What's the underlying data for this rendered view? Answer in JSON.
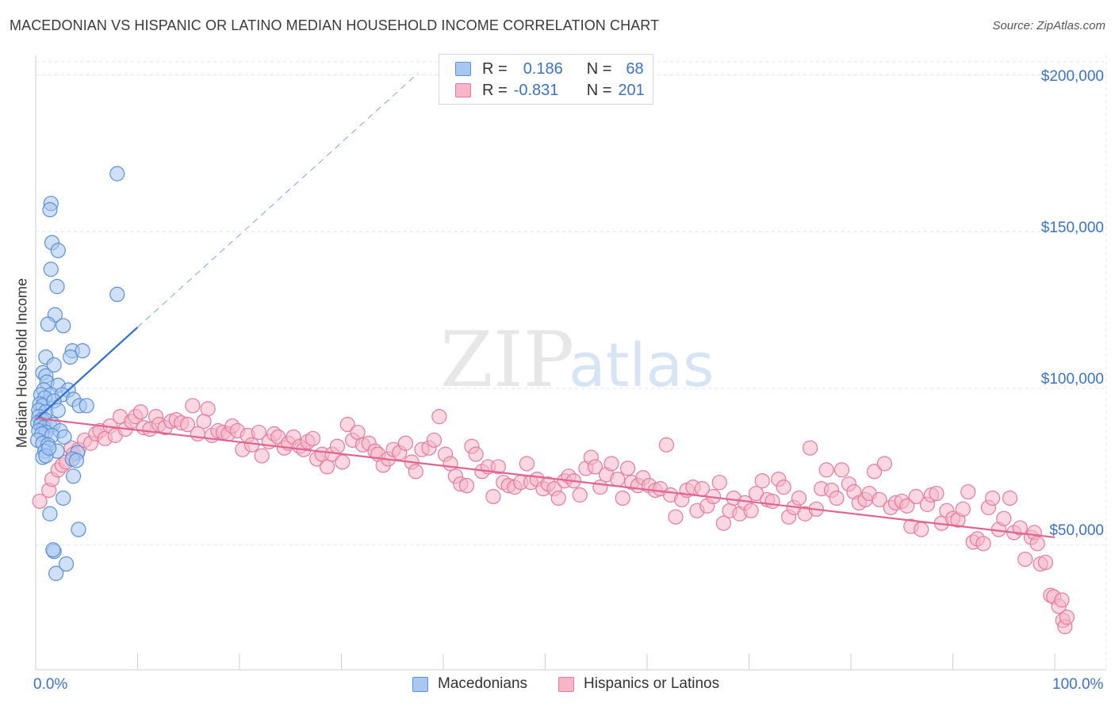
{
  "header": {
    "title": "MACEDONIAN VS HISPANIC OR LATINO MEDIAN HOUSEHOLD INCOME CORRELATION CHART",
    "source": "Source: ZipAtlas.com"
  },
  "watermark": {
    "part1": "ZIP",
    "part2": "atlas"
  },
  "stats": {
    "row1": {
      "r_label": "R =",
      "r_value": "0.186",
      "n_label": "N =",
      "n_value": "68"
    },
    "row2": {
      "r_label": "R =",
      "r_value": "-0.831",
      "n_label": "N =",
      "n_value": "201"
    }
  },
  "legend": {
    "item1": "Macedonians",
    "item2": "Hispanics or Latinos"
  },
  "axes": {
    "ylabel": "Median Household Income",
    "x_min_label": "0.0%",
    "x_max_label": "100.0%",
    "y_ticks": [
      "$50,000",
      "$100,000",
      "$150,000",
      "$200,000"
    ]
  },
  "colors": {
    "blue_fill": "#a9c8f0",
    "blue_stroke": "#5b8fd6",
    "blue_line": "#2f6fd0",
    "pink_fill": "#f6b6c8",
    "pink_stroke": "#e27ba0",
    "pink_line": "#e0648e",
    "tick_text": "#3b73c4",
    "grid": "#e4e4e4"
  },
  "chart_data": {
    "type": "scatter",
    "xlim": [
      0,
      100
    ],
    "ylim": [
      10000,
      210000
    ],
    "grid": true,
    "legend_position": "bottom-center",
    "series": [
      {
        "name": "Macedonians",
        "r": 0.186,
        "n": 68,
        "trend": {
          "x": [
            0,
            10
          ],
          "y": [
            90000,
            119500
          ],
          "extension_x": [
            10,
            37.5
          ],
          "extension_y": [
            119500,
            200500
          ]
        },
        "points": [
          [
            8.0,
            168500
          ],
          [
            1.5,
            159000
          ],
          [
            1.4,
            157000
          ],
          [
            1.6,
            146500
          ],
          [
            2.2,
            144000
          ],
          [
            1.5,
            138000
          ],
          [
            2.1,
            132500
          ],
          [
            8.0,
            130000
          ],
          [
            1.9,
            123500
          ],
          [
            1.2,
            120500
          ],
          [
            2.7,
            120000
          ],
          [
            3.6,
            112000
          ],
          [
            4.6,
            112000
          ],
          [
            1.0,
            110000
          ],
          [
            3.4,
            110000
          ],
          [
            1.8,
            107500
          ],
          [
            0.7,
            105000
          ],
          [
            1.0,
            104000
          ],
          [
            1.1,
            102000
          ],
          [
            2.2,
            101000
          ],
          [
            0.8,
            99500
          ],
          [
            0.5,
            98000
          ],
          [
            3.2,
            99500
          ],
          [
            1.5,
            98000
          ],
          [
            0.9,
            97000
          ],
          [
            2.6,
            98000
          ],
          [
            0.4,
            95000
          ],
          [
            0.7,
            94500
          ],
          [
            1.8,
            96000
          ],
          [
            3.7,
            96500
          ],
          [
            4.3,
            94500
          ],
          [
            5.0,
            94500
          ],
          [
            0.3,
            93000
          ],
          [
            1.0,
            92500
          ],
          [
            2.2,
            93000
          ],
          [
            0.3,
            91000
          ],
          [
            0.6,
            90000
          ],
          [
            0.9,
            90000
          ],
          [
            0.2,
            89000
          ],
          [
            0.5,
            88500
          ],
          [
            1.4,
            88000
          ],
          [
            0.8,
            87500
          ],
          [
            1.7,
            88500
          ],
          [
            0.3,
            86500
          ],
          [
            1.0,
            86000
          ],
          [
            2.4,
            86500
          ],
          [
            0.6,
            85500
          ],
          [
            1.6,
            85000
          ],
          [
            2.8,
            84500
          ],
          [
            0.2,
            83500
          ],
          [
            0.7,
            82500
          ],
          [
            1.2,
            82000
          ],
          [
            0.9,
            80000
          ],
          [
            2.1,
            80000
          ],
          [
            4.1,
            79500
          ],
          [
            0.7,
            78000
          ],
          [
            1.0,
            78500
          ],
          [
            3.6,
            77500
          ],
          [
            4.0,
            77000
          ],
          [
            3.7,
            72000
          ],
          [
            2.7,
            65000
          ],
          [
            1.4,
            60000
          ],
          [
            4.2,
            55000
          ],
          [
            1.8,
            48000
          ],
          [
            1.7,
            48500
          ],
          [
            2.0,
            41000
          ],
          [
            3.0,
            44000
          ],
          [
            1.3,
            81000
          ]
        ]
      },
      {
        "name": "Hispanics or Latinos",
        "r": -0.831,
        "n": 201,
        "trend": {
          "x": [
            0,
            100
          ],
          "y": [
            90500,
            52500
          ]
        },
        "points": [
          [
            0.4,
            64000
          ],
          [
            1.3,
            67500
          ],
          [
            1.6,
            71000
          ],
          [
            2.2,
            74000
          ],
          [
            2.6,
            75500
          ],
          [
            3.0,
            76500
          ],
          [
            3.5,
            81000
          ],
          [
            3.7,
            79000
          ],
          [
            4.2,
            80500
          ],
          [
            4.8,
            83500
          ],
          [
            5.4,
            82500
          ],
          [
            5.9,
            85500
          ],
          [
            6.3,
            86500
          ],
          [
            6.8,
            84000
          ],
          [
            7.3,
            88000
          ],
          [
            7.8,
            85000
          ],
          [
            8.3,
            91000
          ],
          [
            8.8,
            87000
          ],
          [
            9.4,
            89500
          ],
          [
            9.8,
            91000
          ],
          [
            10.3,
            92500
          ],
          [
            10.6,
            87500
          ],
          [
            11.2,
            87000
          ],
          [
            11.8,
            91000
          ],
          [
            12.1,
            88500
          ],
          [
            12.7,
            87500
          ],
          [
            13.3,
            89500
          ],
          [
            13.8,
            90000
          ],
          [
            14.3,
            89000
          ],
          [
            14.9,
            88500
          ],
          [
            15.4,
            94500
          ],
          [
            15.9,
            85500
          ],
          [
            16.5,
            89500
          ],
          [
            16.9,
            93500
          ],
          [
            17.3,
            85000
          ],
          [
            17.9,
            86500
          ],
          [
            18.4,
            86000
          ],
          [
            18.9,
            85500
          ],
          [
            19.3,
            88000
          ],
          [
            19.8,
            86500
          ],
          [
            20.3,
            80500
          ],
          [
            20.8,
            85000
          ],
          [
            21.2,
            82000
          ],
          [
            21.9,
            86000
          ],
          [
            22.2,
            78500
          ],
          [
            22.9,
            83000
          ],
          [
            23.4,
            85500
          ],
          [
            23.8,
            84500
          ],
          [
            24.4,
            81000
          ],
          [
            24.8,
            82500
          ],
          [
            25.3,
            84500
          ],
          [
            25.9,
            81500
          ],
          [
            26.3,
            80500
          ],
          [
            26.7,
            83000
          ],
          [
            27.2,
            84000
          ],
          [
            27.6,
            77500
          ],
          [
            28.1,
            79000
          ],
          [
            28.6,
            75000
          ],
          [
            29.1,
            79000
          ],
          [
            29.6,
            81500
          ],
          [
            30.1,
            76500
          ],
          [
            30.6,
            88500
          ],
          [
            31.1,
            83500
          ],
          [
            31.6,
            86000
          ],
          [
            32.1,
            82000
          ],
          [
            32.7,
            82500
          ],
          [
            33.3,
            80000
          ],
          [
            33.6,
            79000
          ],
          [
            34.1,
            75500
          ],
          [
            34.6,
            77500
          ],
          [
            35.1,
            80500
          ],
          [
            35.7,
            79500
          ],
          [
            36.3,
            82500
          ],
          [
            36.9,
            76500
          ],
          [
            37.3,
            73500
          ],
          [
            37.9,
            80500
          ],
          [
            38.6,
            81000
          ],
          [
            39.1,
            83500
          ],
          [
            39.6,
            91000
          ],
          [
            40.2,
            79000
          ],
          [
            40.7,
            76000
          ],
          [
            41.2,
            72000
          ],
          [
            41.7,
            69500
          ],
          [
            42.3,
            69000
          ],
          [
            42.8,
            81500
          ],
          [
            43.2,
            79000
          ],
          [
            43.8,
            73500
          ],
          [
            44.4,
            75000
          ],
          [
            44.9,
            65500
          ],
          [
            45.4,
            75000
          ],
          [
            45.9,
            70000
          ],
          [
            46.4,
            69000
          ],
          [
            47.0,
            68500
          ],
          [
            47.6,
            70000
          ],
          [
            48.2,
            76000
          ],
          [
            48.6,
            70000
          ],
          [
            49.2,
            71000
          ],
          [
            49.8,
            68000
          ],
          [
            50.3,
            69500
          ],
          [
            50.9,
            68000
          ],
          [
            51.3,
            65000
          ],
          [
            51.9,
            70500
          ],
          [
            52.3,
            72000
          ],
          [
            52.8,
            70500
          ],
          [
            53.4,
            66000
          ],
          [
            54.0,
            74500
          ],
          [
            54.5,
            78000
          ],
          [
            54.9,
            75000
          ],
          [
            55.4,
            68500
          ],
          [
            56.0,
            72500
          ],
          [
            56.5,
            76000
          ],
          [
            57.1,
            71000
          ],
          [
            57.6,
            65000
          ],
          [
            58.1,
            74500
          ],
          [
            58.5,
            70000
          ],
          [
            59.1,
            69000
          ],
          [
            59.6,
            71500
          ],
          [
            60.2,
            69000
          ],
          [
            60.8,
            67500
          ],
          [
            61.3,
            68000
          ],
          [
            61.9,
            82000
          ],
          [
            62.3,
            66000
          ],
          [
            62.8,
            59000
          ],
          [
            63.4,
            64500
          ],
          [
            63.9,
            67500
          ],
          [
            64.5,
            68500
          ],
          [
            64.9,
            61000
          ],
          [
            65.4,
            68000
          ],
          [
            65.9,
            62500
          ],
          [
            66.5,
            65500
          ],
          [
            67.1,
            70000
          ],
          [
            67.5,
            57000
          ],
          [
            68.1,
            61000
          ],
          [
            68.5,
            65000
          ],
          [
            69.1,
            60000
          ],
          [
            69.6,
            63500
          ],
          [
            70.2,
            61000
          ],
          [
            70.7,
            66500
          ],
          [
            71.3,
            70500
          ],
          [
            71.8,
            64500
          ],
          [
            72.3,
            64000
          ],
          [
            72.9,
            71000
          ],
          [
            73.4,
            68500
          ],
          [
            73.9,
            59000
          ],
          [
            74.4,
            62000
          ],
          [
            74.9,
            65000
          ],
          [
            75.5,
            60000
          ],
          [
            76.0,
            81000
          ],
          [
            76.6,
            61500
          ],
          [
            77.1,
            68000
          ],
          [
            77.6,
            74000
          ],
          [
            78.1,
            67500
          ],
          [
            78.6,
            65000
          ],
          [
            79.1,
            74000
          ],
          [
            79.8,
            69500
          ],
          [
            80.3,
            67000
          ],
          [
            80.8,
            63500
          ],
          [
            81.4,
            64500
          ],
          [
            81.8,
            66500
          ],
          [
            82.3,
            73500
          ],
          [
            82.8,
            64500
          ],
          [
            83.3,
            76000
          ],
          [
            83.9,
            62000
          ],
          [
            84.4,
            63500
          ],
          [
            85.0,
            64000
          ],
          [
            85.5,
            62500
          ],
          [
            85.9,
            56000
          ],
          [
            86.4,
            65500
          ],
          [
            86.9,
            55000
          ],
          [
            87.5,
            63000
          ],
          [
            87.9,
            66000
          ],
          [
            88.4,
            66500
          ],
          [
            88.9,
            57000
          ],
          [
            89.4,
            61000
          ],
          [
            90.0,
            58500
          ],
          [
            90.5,
            58000
          ],
          [
            91.0,
            61500
          ],
          [
            91.5,
            67000
          ],
          [
            92.0,
            51000
          ],
          [
            92.4,
            52000
          ],
          [
            93.0,
            50500
          ],
          [
            93.5,
            62000
          ],
          [
            93.9,
            65000
          ],
          [
            94.5,
            55000
          ],
          [
            95.0,
            58500
          ],
          [
            95.6,
            65000
          ],
          [
            96.0,
            54000
          ],
          [
            96.6,
            55500
          ],
          [
            97.1,
            45500
          ],
          [
            97.7,
            52500
          ],
          [
            98.0,
            54000
          ],
          [
            98.6,
            44000
          ],
          [
            99.1,
            44500
          ],
          [
            99.6,
            34000
          ],
          [
            99.9,
            33500
          ],
          [
            100.4,
            30500
          ],
          [
            100.8,
            26000
          ],
          [
            101.0,
            24000
          ],
          [
            101.2,
            27000
          ],
          [
            100.7,
            32500
          ],
          [
            98.3,
            50500
          ]
        ]
      }
    ]
  }
}
